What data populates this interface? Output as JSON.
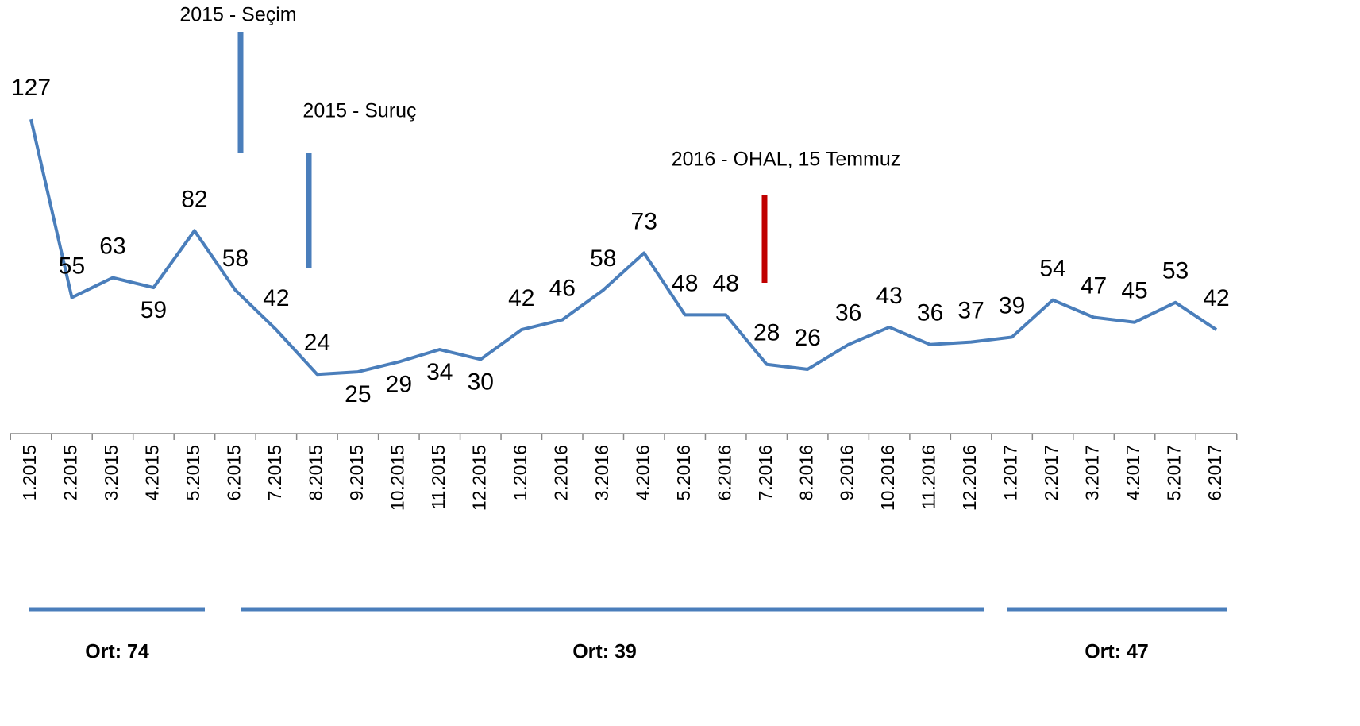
{
  "chart_data": {
    "type": "line",
    "categories": [
      "1.2015",
      "2.2015",
      "3.2015",
      "4.2015",
      "5.2015",
      "6.2015",
      "7.2015",
      "8.2015",
      "9.2015",
      "10.2015",
      "11.2015",
      "12.2015",
      "1.2016",
      "2.2016",
      "3.2016",
      "4.2016",
      "5.2016",
      "6.2016",
      "7.2016",
      "8.2016",
      "9.2016",
      "10.2016",
      "11.2016",
      "12.2016",
      "1.2017",
      "2.2017",
      "3.2017",
      "4.2017",
      "5.2017",
      "6.2017"
    ],
    "values": [
      127,
      55,
      63,
      59,
      82,
      58,
      42,
      24,
      25,
      29,
      34,
      30,
      42,
      46,
      58,
      73,
      48,
      48,
      28,
      26,
      36,
      43,
      36,
      37,
      39,
      54,
      47,
      45,
      53,
      42
    ],
    "color": "#4a7ebb",
    "annotations": [
      {
        "text": "2015 - Seçim",
        "color": "#4a7ebb"
      },
      {
        "text": "2015 - Suruç",
        "color": "#4a7ebb"
      },
      {
        "text": "2016 - OHAL, 15 Temmuz",
        "color": "#c00000"
      }
    ],
    "periods": [
      {
        "label": "Ort: 74",
        "color": "#4a7ebb"
      },
      {
        "label": "Ort: 39",
        "color": "#4a7ebb"
      },
      {
        "label": "Ort: 47",
        "color": "#4a7ebb"
      }
    ]
  }
}
